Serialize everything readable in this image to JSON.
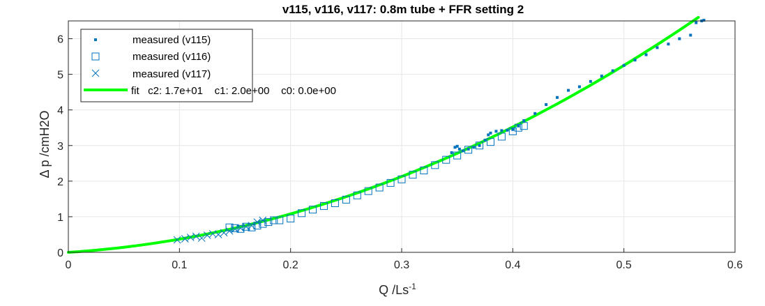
{
  "chart_data": {
    "type": "scatter",
    "title": "v115, v116, v117: 0.8m tube + FFR setting 2",
    "xlabel": "Q /Ls",
    "xlabel_sup": "-1",
    "ylabel": "Δ p /cmH2O",
    "xlim": [
      0,
      0.6
    ],
    "ylim": [
      0,
      6.5
    ],
    "xticks": [
      "0",
      "0.1",
      "0.2",
      "0.3",
      "0.4",
      "0.5",
      "0.6"
    ],
    "yticks": [
      "0",
      "1",
      "2",
      "3",
      "4",
      "5",
      "6"
    ],
    "grid": true,
    "legend_position": "top-left",
    "colors": {
      "measured": "#0072bd",
      "fit": "#00ff00",
      "grid": "#e6e6e6",
      "axis": "#262626"
    },
    "series": [
      {
        "name": "measured (v115)",
        "marker": "point",
        "x": [
          0.345,
          0.348,
          0.35,
          0.352,
          0.355,
          0.36,
          0.365,
          0.37,
          0.375,
          0.378,
          0.38,
          0.385,
          0.39,
          0.395,
          0.4,
          0.405,
          0.41,
          0.42,
          0.43,
          0.44,
          0.45,
          0.46,
          0.47,
          0.48,
          0.49,
          0.5,
          0.51,
          0.52,
          0.53,
          0.54,
          0.55,
          0.56,
          0.565,
          0.57,
          0.572
        ],
        "y": [
          2.8,
          2.95,
          2.98,
          2.9,
          2.85,
          2.9,
          2.95,
          3.0,
          3.15,
          3.3,
          3.35,
          3.4,
          3.42,
          3.43,
          3.45,
          3.55,
          3.7,
          3.9,
          4.15,
          4.35,
          4.55,
          4.65,
          4.8,
          4.95,
          5.1,
          5.25,
          5.4,
          5.55,
          5.75,
          5.85,
          6.0,
          6.1,
          6.45,
          6.5,
          6.52
        ]
      },
      {
        "name": "measured (v116)",
        "marker": "square",
        "x": [
          0.145,
          0.15,
          0.155,
          0.16,
          0.165,
          0.17,
          0.175,
          0.18,
          0.185,
          0.19,
          0.2,
          0.21,
          0.22,
          0.23,
          0.24,
          0.25,
          0.26,
          0.27,
          0.28,
          0.29,
          0.3,
          0.31,
          0.32,
          0.33,
          0.34,
          0.35,
          0.36,
          0.37,
          0.38,
          0.39,
          0.4,
          0.405,
          0.41
        ],
        "y": [
          0.7,
          0.68,
          0.66,
          0.72,
          0.7,
          0.75,
          0.8,
          0.85,
          0.9,
          0.9,
          0.95,
          1.1,
          1.2,
          1.3,
          1.38,
          1.48,
          1.6,
          1.72,
          1.82,
          1.95,
          2.05,
          2.18,
          2.3,
          2.45,
          2.6,
          2.72,
          2.88,
          3.0,
          3.1,
          3.25,
          3.4,
          3.5,
          3.55
        ]
      },
      {
        "name": "measured (v117)",
        "marker": "x",
        "x": [
          0.098,
          0.105,
          0.11,
          0.115,
          0.12,
          0.125,
          0.13,
          0.135,
          0.14,
          0.145,
          0.15,
          0.155,
          0.16,
          0.165,
          0.17,
          0.175
        ],
        "y": [
          0.35,
          0.38,
          0.42,
          0.45,
          0.4,
          0.48,
          0.52,
          0.5,
          0.55,
          0.6,
          0.65,
          0.68,
          0.72,
          0.75,
          0.85,
          0.9
        ]
      }
    ],
    "fit": {
      "name": "fit   c2: 1.7e+01    c1: 2.0e+00    c0: 0.0e+00",
      "c2": 17,
      "c1": 2.0,
      "c0": 0.0,
      "x_range": [
        0,
        0.567
      ]
    }
  }
}
